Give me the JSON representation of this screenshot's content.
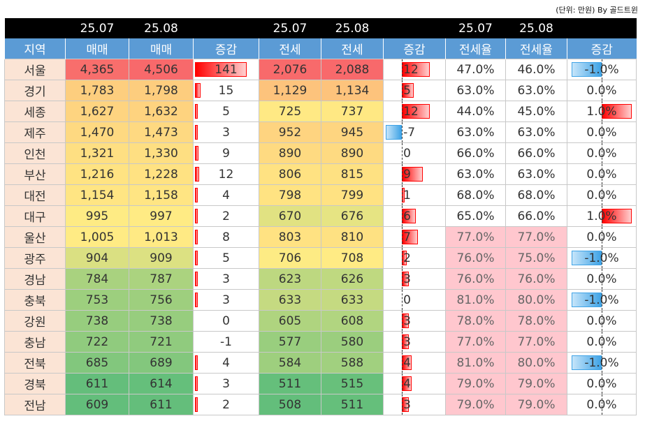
{
  "unit_note": "(단위: 만원) By 골드트윈",
  "period_labels": [
    "25.07",
    "25.08"
  ],
  "headers": [
    "지역",
    "매매",
    "매매",
    "증감",
    "전세",
    "전세",
    "증감",
    "전세율",
    "전세율",
    "증감"
  ],
  "colors": {
    "header_blue": "#5b9bd5",
    "increase_red": "#ff0000",
    "decrease_blue": "#3fa3e6",
    "high_rate_pink": "#ffc7ce"
  },
  "chart_data": {
    "type": "table",
    "columns": [
      "지역",
      "매매 25.07",
      "매매 25.08",
      "매매 증감",
      "전세 25.07",
      "전세 25.08",
      "전세 증감",
      "전세율 25.07",
      "전세율 25.08",
      "전세율 증감"
    ],
    "rows": [
      {
        "region": "서울",
        "sale_jul": "4,365",
        "sale_aug": "4,506",
        "sale_chg": "141",
        "jeonse_jul": "2,076",
        "jeonse_aug": "2,088",
        "jeonse_chg": "12",
        "rate_jul": "47.0%",
        "rate_aug": "46.0%",
        "rate_chg": "-1.0%"
      },
      {
        "region": "경기",
        "sale_jul": "1,783",
        "sale_aug": "1,798",
        "sale_chg": "15",
        "jeonse_jul": "1,129",
        "jeonse_aug": "1,134",
        "jeonse_chg": "5",
        "rate_jul": "63.0%",
        "rate_aug": "63.0%",
        "rate_chg": "0.0%"
      },
      {
        "region": "세종",
        "sale_jul": "1,627",
        "sale_aug": "1,632",
        "sale_chg": "5",
        "jeonse_jul": "725",
        "jeonse_aug": "737",
        "jeonse_chg": "12",
        "rate_jul": "44.0%",
        "rate_aug": "45.0%",
        "rate_chg": "1.0%"
      },
      {
        "region": "제주",
        "sale_jul": "1,470",
        "sale_aug": "1,473",
        "sale_chg": "3",
        "jeonse_jul": "952",
        "jeonse_aug": "945",
        "jeonse_chg": "-7",
        "rate_jul": "63.0%",
        "rate_aug": "63.0%",
        "rate_chg": "0.0%"
      },
      {
        "region": "인천",
        "sale_jul": "1,321",
        "sale_aug": "1,330",
        "sale_chg": "9",
        "jeonse_jul": "890",
        "jeonse_aug": "890",
        "jeonse_chg": "0",
        "rate_jul": "66.0%",
        "rate_aug": "66.0%",
        "rate_chg": "0.0%"
      },
      {
        "region": "부산",
        "sale_jul": "1,216",
        "sale_aug": "1,228",
        "sale_chg": "12",
        "jeonse_jul": "806",
        "jeonse_aug": "815",
        "jeonse_chg": "9",
        "rate_jul": "63.0%",
        "rate_aug": "63.0%",
        "rate_chg": "0.0%"
      },
      {
        "region": "대전",
        "sale_jul": "1,154",
        "sale_aug": "1,158",
        "sale_chg": "4",
        "jeonse_jul": "798",
        "jeonse_aug": "799",
        "jeonse_chg": "1",
        "rate_jul": "68.0%",
        "rate_aug": "68.0%",
        "rate_chg": "0.0%"
      },
      {
        "region": "대구",
        "sale_jul": "995",
        "sale_aug": "997",
        "sale_chg": "2",
        "jeonse_jul": "670",
        "jeonse_aug": "676",
        "jeonse_chg": "6",
        "rate_jul": "65.0%",
        "rate_aug": "66.0%",
        "rate_chg": "1.0%"
      },
      {
        "region": "울산",
        "sale_jul": "1,005",
        "sale_aug": "1,013",
        "sale_chg": "8",
        "jeonse_jul": "803",
        "jeonse_aug": "810",
        "jeonse_chg": "7",
        "rate_jul": "77.0%",
        "rate_aug": "77.0%",
        "rate_chg": "0.0%"
      },
      {
        "region": "광주",
        "sale_jul": "904",
        "sale_aug": "909",
        "sale_chg": "5",
        "jeonse_jul": "706",
        "jeonse_aug": "708",
        "jeonse_chg": "2",
        "rate_jul": "76.0%",
        "rate_aug": "75.0%",
        "rate_chg": "-1.0%"
      },
      {
        "region": "경남",
        "sale_jul": "784",
        "sale_aug": "787",
        "sale_chg": "3",
        "jeonse_jul": "623",
        "jeonse_aug": "626",
        "jeonse_chg": "3",
        "rate_jul": "76.0%",
        "rate_aug": "76.0%",
        "rate_chg": "0.0%"
      },
      {
        "region": "충북",
        "sale_jul": "753",
        "sale_aug": "756",
        "sale_chg": "3",
        "jeonse_jul": "633",
        "jeonse_aug": "633",
        "jeonse_chg": "0",
        "rate_jul": "81.0%",
        "rate_aug": "80.0%",
        "rate_chg": "-1.0%"
      },
      {
        "region": "강원",
        "sale_jul": "738",
        "sale_aug": "738",
        "sale_chg": "0",
        "jeonse_jul": "605",
        "jeonse_aug": "608",
        "jeonse_chg": "3",
        "rate_jul": "78.0%",
        "rate_aug": "78.0%",
        "rate_chg": "0.0%"
      },
      {
        "region": "충남",
        "sale_jul": "722",
        "sale_aug": "721",
        "sale_chg": "-1",
        "jeonse_jul": "577",
        "jeonse_aug": "580",
        "jeonse_chg": "3",
        "rate_jul": "77.0%",
        "rate_aug": "77.0%",
        "rate_chg": "0.0%"
      },
      {
        "region": "전북",
        "sale_jul": "685",
        "sale_aug": "689",
        "sale_chg": "4",
        "jeonse_jul": "584",
        "jeonse_aug": "588",
        "jeonse_chg": "4",
        "rate_jul": "81.0%",
        "rate_aug": "80.0%",
        "rate_chg": "-1.0%"
      },
      {
        "region": "경북",
        "sale_jul": "611",
        "sale_aug": "614",
        "sale_chg": "3",
        "jeonse_jul": "511",
        "jeonse_aug": "515",
        "jeonse_chg": "4",
        "rate_jul": "79.0%",
        "rate_aug": "79.0%",
        "rate_chg": "0.0%"
      },
      {
        "region": "전남",
        "sale_jul": "609",
        "sale_aug": "611",
        "sale_chg": "2",
        "jeonse_jul": "508",
        "jeonse_aug": "511",
        "jeonse_chg": "3",
        "rate_jul": "79.0%",
        "rate_aug": "79.0%",
        "rate_chg": "0.0%"
      }
    ]
  }
}
